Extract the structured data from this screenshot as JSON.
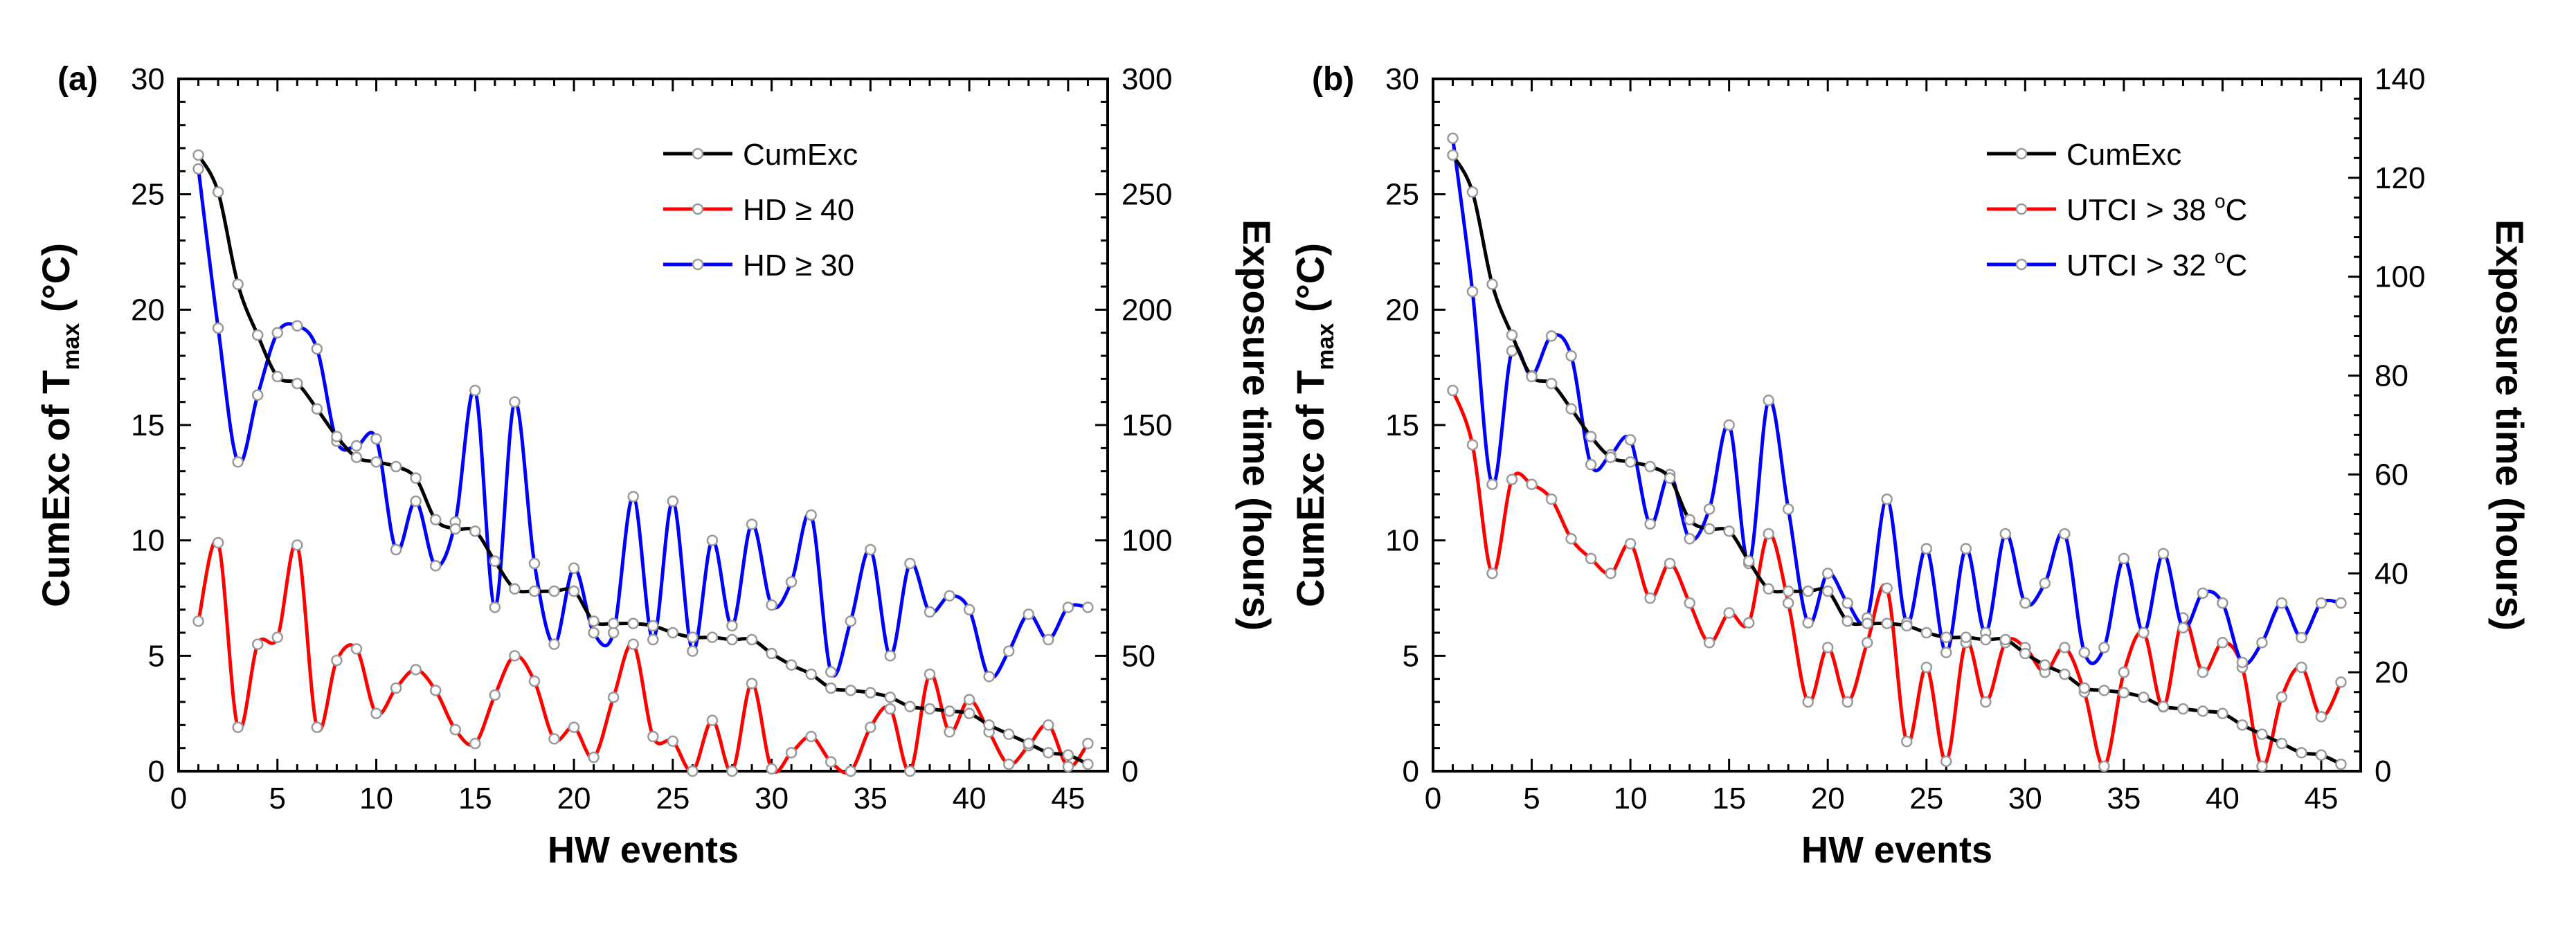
{
  "chart_data": [
    {
      "type": "line",
      "panel_label": "(a)",
      "xlabel": "HW events",
      "ylabel": "CumExc of T",
      "ylabel_sub": "max",
      "ylabel_unit": " (°C)",
      "y2label": "Exposure time (hours)",
      "xlim": [
        0,
        47
      ],
      "ylim": [
        0,
        30
      ],
      "y2lim": [
        0,
        300
      ],
      "xticks": [
        0,
        5,
        10,
        15,
        20,
        25,
        30,
        35,
        40,
        45
      ],
      "yticks": [
        0,
        5,
        10,
        15,
        20,
        25,
        30
      ],
      "y2ticks": [
        0,
        50,
        100,
        150,
        200,
        250,
        300
      ],
      "series": [
        {
          "name": "CumExc",
          "legend_parts": [
            "CumExc"
          ],
          "axis": "left",
          "color": "#000000",
          "x": [
            1,
            2,
            3,
            4,
            5,
            6,
            7,
            8,
            9,
            10,
            11,
            12,
            13,
            14,
            15,
            16,
            17,
            18,
            19,
            20,
            21,
            22,
            23,
            24,
            25,
            26,
            27,
            28,
            29,
            30,
            31,
            32,
            33,
            34,
            35,
            36,
            37,
            38,
            39,
            40,
            41,
            42,
            43,
            44,
            45,
            46
          ],
          "values": [
            26.7,
            25.1,
            21.1,
            18.9,
            17.1,
            16.8,
            15.7,
            14.5,
            13.6,
            13.4,
            13.2,
            12.7,
            10.9,
            10.5,
            10.4,
            9.1,
            7.9,
            7.8,
            7.8,
            7.8,
            6.5,
            6.4,
            6.4,
            6.3,
            6.0,
            5.8,
            5.8,
            5.7,
            5.7,
            5.1,
            4.6,
            4.2,
            3.6,
            3.5,
            3.4,
            3.2,
            2.8,
            2.7,
            2.6,
            2.5,
            2.0,
            1.6,
            1.2,
            0.8,
            0.7,
            0.3
          ]
        },
        {
          "name": "HD ≥ 40",
          "legend_parts": [
            "HD ≥ 40"
          ],
          "axis": "right",
          "color": "#ff0000",
          "x": [
            1,
            2,
            3,
            4,
            5,
            6,
            7,
            8,
            9,
            10,
            11,
            12,
            13,
            14,
            15,
            16,
            17,
            18,
            19,
            20,
            21,
            22,
            23,
            24,
            25,
            26,
            27,
            28,
            29,
            30,
            31,
            32,
            33,
            34,
            35,
            36,
            37,
            38,
            39,
            40,
            41,
            42,
            43,
            44,
            45,
            46
          ],
          "values": [
            65,
            99,
            19,
            55,
            58,
            98,
            19,
            48,
            53,
            25,
            36,
            44,
            35,
            18,
            12,
            33,
            50,
            39,
            14,
            19,
            6,
            32,
            55,
            15,
            13,
            0,
            22,
            0,
            38,
            1,
            8,
            15,
            4,
            0,
            19,
            27,
            0,
            42,
            17,
            31,
            17,
            3,
            11,
            20,
            2,
            12
          ]
        },
        {
          "name": "HD ≥ 30",
          "legend_parts": [
            "HD ≥ 30"
          ],
          "axis": "right",
          "color": "#0000ff",
          "x": [
            1,
            2,
            3,
            4,
            5,
            6,
            7,
            8,
            9,
            10,
            11,
            12,
            13,
            14,
            15,
            16,
            17,
            18,
            19,
            20,
            21,
            22,
            23,
            24,
            25,
            26,
            27,
            28,
            29,
            30,
            31,
            32,
            33,
            34,
            35,
            36,
            37,
            38,
            39,
            40,
            41,
            42,
            43,
            44,
            45,
            46
          ],
          "values": [
            261,
            192,
            134,
            163,
            190,
            193,
            183,
            143,
            141,
            144,
            96,
            117,
            89,
            108,
            165,
            71,
            160,
            90,
            55,
            88,
            60,
            60,
            119,
            57,
            117,
            52,
            100,
            63,
            107,
            72,
            82,
            111,
            43,
            65,
            96,
            50,
            90,
            69,
            76,
            70,
            41,
            52,
            68,
            57,
            71,
            71
          ]
        }
      ]
    },
    {
      "type": "line",
      "panel_label": "(b)",
      "xlabel": "HW events",
      "ylabel": "CumExc of T",
      "ylabel_sub": "max",
      "ylabel_unit": " (°C)",
      "y2label": "Exposure time (hours)",
      "xlim": [
        0,
        47
      ],
      "ylim": [
        0,
        30
      ],
      "y2lim": [
        0,
        140
      ],
      "xticks": [
        0,
        5,
        10,
        15,
        20,
        25,
        30,
        35,
        40,
        45
      ],
      "yticks": [
        0,
        5,
        10,
        15,
        20,
        25,
        30
      ],
      "y2ticks": [
        0,
        20,
        40,
        60,
        80,
        100,
        120,
        140
      ],
      "series": [
        {
          "name": "CumExc",
          "legend_parts": [
            "CumExc"
          ],
          "axis": "left",
          "color": "#000000",
          "x": [
            1,
            2,
            3,
            4,
            5,
            6,
            7,
            8,
            9,
            10,
            11,
            12,
            13,
            14,
            15,
            16,
            17,
            18,
            19,
            20,
            21,
            22,
            23,
            24,
            25,
            26,
            27,
            28,
            29,
            30,
            31,
            32,
            33,
            34,
            35,
            36,
            37,
            38,
            39,
            40,
            41,
            42,
            43,
            44,
            45,
            46
          ],
          "values": [
            26.7,
            25.1,
            21.1,
            18.9,
            17.1,
            16.8,
            15.7,
            14.5,
            13.6,
            13.4,
            13.2,
            12.7,
            10.9,
            10.5,
            10.4,
            9.1,
            7.9,
            7.8,
            7.8,
            7.8,
            6.5,
            6.4,
            6.4,
            6.3,
            6.0,
            5.8,
            5.8,
            5.7,
            5.7,
            5.1,
            4.6,
            4.2,
            3.6,
            3.5,
            3.4,
            3.2,
            2.8,
            2.7,
            2.6,
            2.5,
            2.0,
            1.6,
            1.2,
            0.8,
            0.7,
            0.3
          ]
        },
        {
          "name": "UTCI > 38 °C",
          "legend_parts": [
            "UTCI > 38 ",
            "o",
            "C"
          ],
          "axis": "right",
          "color": "#ff0000",
          "x": [
            1,
            2,
            3,
            4,
            5,
            6,
            7,
            8,
            9,
            10,
            11,
            12,
            13,
            14,
            15,
            16,
            17,
            18,
            19,
            20,
            21,
            22,
            23,
            24,
            25,
            26,
            27,
            28,
            29,
            30,
            31,
            32,
            33,
            34,
            35,
            36,
            37,
            38,
            39,
            40,
            41,
            42,
            43,
            44,
            45,
            46
          ],
          "values": [
            77,
            66,
            40,
            59,
            58,
            55,
            47,
            43,
            40,
            46,
            35,
            42,
            34,
            26,
            32,
            30,
            48,
            34,
            14,
            25,
            14,
            26,
            37,
            6,
            21,
            2,
            26,
            14,
            26,
            25,
            20,
            25,
            16,
            1,
            20,
            28,
            13,
            31,
            20,
            26,
            21,
            1,
            15,
            21,
            11,
            18
          ]
        },
        {
          "name": "UTCI > 32 °C",
          "legend_parts": [
            "UTCI > 32 ",
            "o",
            "C"
          ],
          "axis": "right",
          "color": "#0000ff",
          "x": [
            1,
            2,
            3,
            4,
            5,
            6,
            7,
            8,
            9,
            10,
            11,
            12,
            13,
            14,
            15,
            16,
            17,
            18,
            19,
            20,
            21,
            22,
            23,
            24,
            25,
            26,
            27,
            28,
            29,
            30,
            31,
            32,
            33,
            34,
            35,
            36,
            37,
            38,
            39,
            40,
            41,
            42,
            43,
            44,
            45,
            46
          ],
          "values": [
            128,
            97,
            58,
            85,
            80,
            88,
            84,
            62,
            64,
            67,
            50,
            60,
            47,
            53,
            70,
            42,
            75,
            53,
            30,
            40,
            34,
            31,
            55,
            30,
            45,
            24,
            45,
            28,
            48,
            34,
            38,
            48,
            24,
            25,
            43,
            28,
            44,
            29,
            36,
            34,
            22,
            26,
            34,
            27,
            34,
            34
          ]
        }
      ]
    }
  ]
}
